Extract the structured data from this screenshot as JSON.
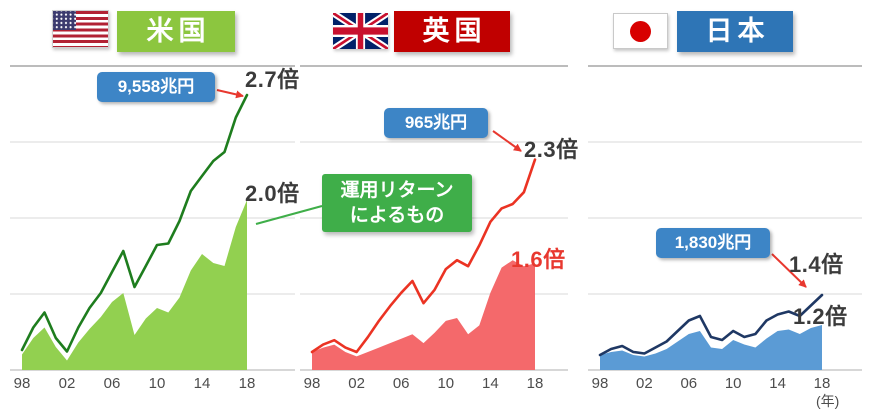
{
  "page": {
    "background": "#ffffff",
    "year_unit": "(年)"
  },
  "colors": {
    "value_badge_blue": "#3d85c6",
    "arrow_red": "#e8382f",
    "callout_green": "#3fae49",
    "grid_top": "#a6a6a6",
    "grid_light": "#d9d9d9",
    "axis": "#bfbfbf",
    "tick_text": "#4d4d4d"
  },
  "headers": [
    {
      "flag": "us-flag",
      "label": "米国",
      "box_color": "#8cc63f"
    },
    {
      "flag": "uk-flag",
      "label": "英国",
      "box_color": "#c00000"
    },
    {
      "flag": "jp-flag",
      "label": "日本",
      "box_color": "#2e75b6"
    }
  ],
  "annotations": {
    "us_value_badge": "9,558兆円",
    "us_total_multiplier": "2.7倍",
    "us_return_multiplier": "2.0倍",
    "uk_value_badge": "965兆円",
    "uk_total_multiplier": "2.3倍",
    "uk_return_multiplier": "1.6倍",
    "jp_value_badge": "1,830兆円",
    "jp_total_multiplier": "1.4倍",
    "jp_return_multiplier": "1.2倍",
    "callout_line1": "運用リターン",
    "callout_line2": "によるもの"
  },
  "chart_data": {
    "type": "area",
    "y_unit": "index, 1998 = 1.0 (estimated from figure)",
    "x": [
      1998,
      1999,
      2000,
      2001,
      2002,
      2003,
      2004,
      2005,
      2006,
      2007,
      2008,
      2009,
      2010,
      2011,
      2012,
      2013,
      2014,
      2015,
      2016,
      2017,
      2018
    ],
    "x_tick_years": [
      1998,
      2002,
      2006,
      2010,
      2014,
      2018
    ],
    "x_tick_labels": [
      "98",
      "02",
      "06",
      "10",
      "14",
      "18"
    ],
    "x_axis_unit": "(年)",
    "grid": true,
    "charts": [
      {
        "id": "us",
        "country": "米国",
        "end_value_label": "9,558兆円",
        "series": [
          {
            "id": "total",
            "style": "line",
            "color": "#1e7d1e",
            "end_multiplier": "2.7倍",
            "values": [
              1.0,
              1.15,
              1.25,
              1.08,
              0.99,
              1.15,
              1.28,
              1.38,
              1.52,
              1.66,
              1.42,
              1.56,
              1.7,
              1.71,
              1.86,
              2.06,
              2.16,
              2.26,
              2.32,
              2.55,
              2.7
            ]
          },
          {
            "id": "return",
            "label": "運用リターンによるもの",
            "style": "area",
            "color": "#92d050",
            "end_multiplier": "2.0倍",
            "values": [
              0.97,
              1.08,
              1.15,
              1.02,
              0.93,
              1.05,
              1.14,
              1.22,
              1.32,
              1.38,
              1.1,
              1.21,
              1.28,
              1.25,
              1.35,
              1.53,
              1.64,
              1.58,
              1.56,
              1.82,
              2.0
            ]
          }
        ]
      },
      {
        "id": "uk",
        "country": "英国",
        "end_value_label": "965兆円",
        "series": [
          {
            "id": "total",
            "style": "line",
            "color": "#eb3323",
            "end_multiplier": "2.3倍",
            "values": [
              1.0,
              1.05,
              1.08,
              1.03,
              1.0,
              1.1,
              1.21,
              1.31,
              1.4,
              1.48,
              1.33,
              1.42,
              1.56,
              1.62,
              1.58,
              1.72,
              1.88,
              1.97,
              2.0,
              2.08,
              2.3
            ]
          },
          {
            "id": "return",
            "label": "運用リターンによるもの",
            "style": "area",
            "color": "#f4696b",
            "end_multiplier": "1.6倍",
            "values": [
              1.0,
              1.03,
              1.05,
              1.0,
              0.97,
              1.0,
              1.03,
              1.06,
              1.09,
              1.12,
              1.06,
              1.13,
              1.21,
              1.23,
              1.12,
              1.18,
              1.4,
              1.57,
              1.62,
              1.58,
              1.6
            ]
          }
        ]
      },
      {
        "id": "jp",
        "country": "日本",
        "end_value_label": "1,830兆円",
        "series": [
          {
            "id": "total",
            "style": "line",
            "color": "#1f3864",
            "end_multiplier": "1.4倍",
            "values": [
              1.0,
              1.04,
              1.06,
              1.02,
              1.01,
              1.05,
              1.09,
              1.16,
              1.23,
              1.26,
              1.12,
              1.1,
              1.16,
              1.12,
              1.14,
              1.23,
              1.27,
              1.29,
              1.26,
              1.33,
              1.4
            ]
          },
          {
            "id": "return",
            "label": "運用リターンによるもの",
            "style": "area",
            "color": "#5b9bd5",
            "end_multiplier": "1.2倍",
            "values": [
              1.0,
              1.02,
              1.03,
              1.0,
              0.99,
              1.01,
              1.04,
              1.09,
              1.14,
              1.16,
              1.05,
              1.04,
              1.1,
              1.07,
              1.05,
              1.11,
              1.16,
              1.17,
              1.14,
              1.18,
              1.2
            ]
          }
        ]
      }
    ]
  }
}
